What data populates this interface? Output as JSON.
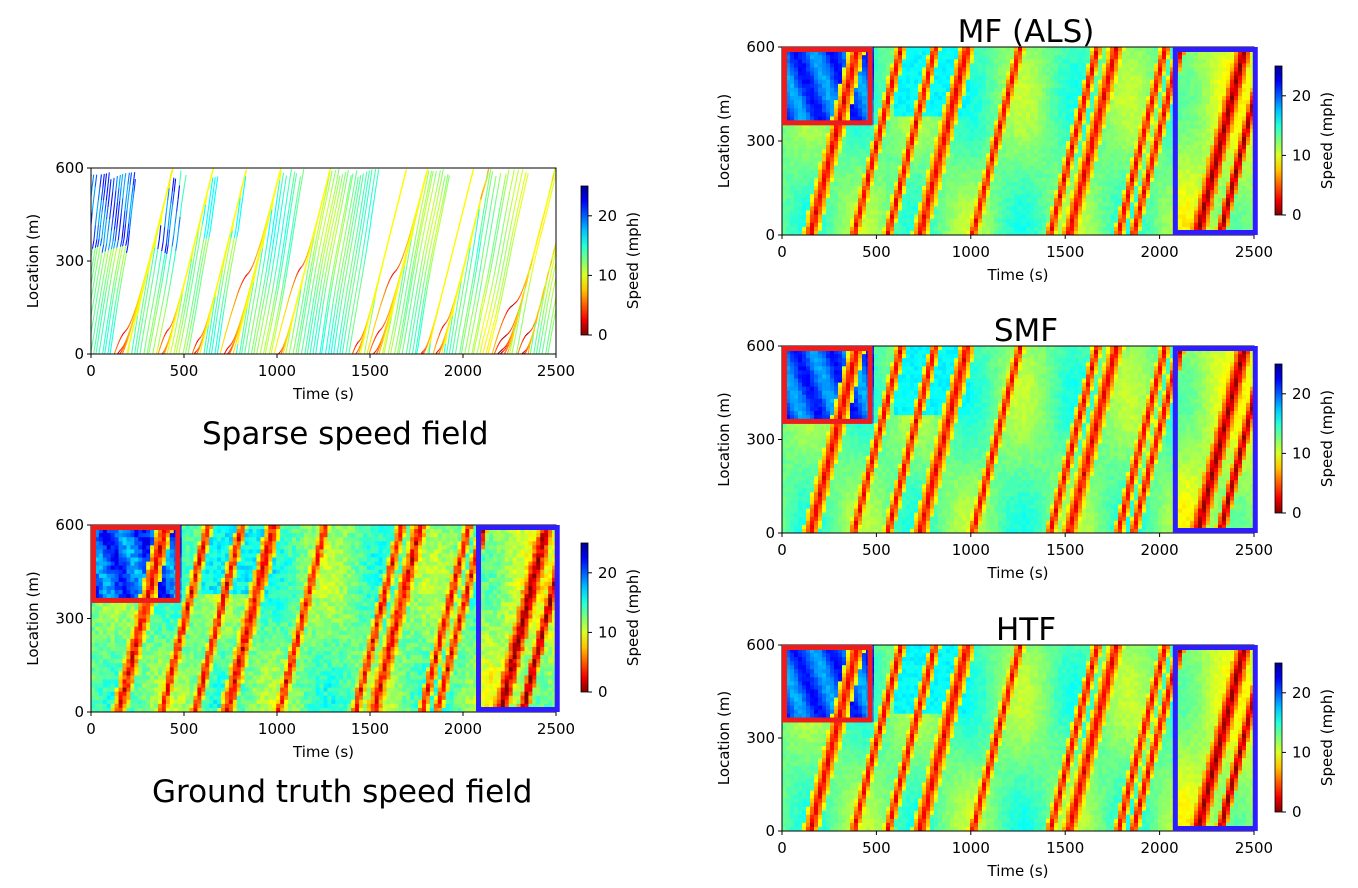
{
  "captions": {
    "sparse": "Sparse speed field",
    "ground_truth": "Ground truth speed field"
  },
  "highlight_colors": {
    "congestion_box": "#ee1c1c",
    "late_box": "#2f1cff"
  },
  "chart_data": [
    {
      "id": "sparse",
      "type": "heatmap",
      "title": "",
      "xlabel": "Time (s)",
      "ylabel": "Location (m)",
      "xlim": [
        0,
        2500
      ],
      "ylim": [
        0,
        600
      ],
      "xticks": [
        0,
        500,
        1000,
        1500,
        2000,
        2500
      ],
      "yticks": [
        0,
        300,
        600
      ],
      "colorbar": {
        "label": "Speed (mph)",
        "ticks": [
          0,
          10,
          20
        ],
        "range": [
          0,
          25
        ],
        "colormap": "jet_r"
      },
      "rendering": "sparse",
      "congestion_waves_start_time_s": [
        150,
        380,
        560,
        730,
        1010,
        1420,
        1520,
        1780,
        1860,
        2200,
        2320
      ],
      "highlight_boxes": []
    },
    {
      "id": "ground_truth",
      "type": "heatmap",
      "title": "",
      "xlabel": "Time (s)",
      "ylabel": "Location (m)",
      "xlim": [
        0,
        2500
      ],
      "ylim": [
        0,
        600
      ],
      "xticks": [
        0,
        500,
        1000,
        1500,
        2000,
        2500
      ],
      "yticks": [
        0,
        300,
        600
      ],
      "colorbar": {
        "label": "Speed (mph)",
        "ticks": [
          0,
          10,
          20
        ],
        "range": [
          0,
          25
        ],
        "colormap": "jet_r"
      },
      "rendering": "dense",
      "congestion_waves_start_time_s": [
        150,
        380,
        560,
        730,
        1010,
        1420,
        1520,
        1780,
        1860,
        2200,
        2320
      ],
      "highlight_boxes": [
        {
          "color": "red",
          "t": [
            0,
            480
          ],
          "loc": [
            350,
            600
          ]
        },
        {
          "color": "blue",
          "t": [
            2070,
            2520
          ],
          "loc": [
            0,
            600
          ]
        }
      ]
    },
    {
      "id": "mf_als",
      "type": "heatmap",
      "title": "MF (ALS)",
      "xlabel": "Time (s)",
      "ylabel": "Location (m)",
      "xlim": [
        0,
        2500
      ],
      "ylim": [
        0,
        600
      ],
      "xticks": [
        0,
        500,
        1000,
        1500,
        2000,
        2500
      ],
      "yticks": [
        0,
        300,
        600
      ],
      "colorbar": {
        "label": "Speed (mph)",
        "ticks": [
          0,
          10,
          20
        ],
        "range": [
          0,
          25
        ],
        "colormap": "jet_r"
      },
      "rendering": "smooth",
      "congestion_waves_start_time_s": [
        150,
        380,
        560,
        730,
        1010,
        1420,
        1520,
        1780,
        1860,
        2200,
        2320
      ],
      "highlight_boxes": [
        {
          "color": "red",
          "t": [
            0,
            480
          ],
          "loc": [
            350,
            600
          ]
        },
        {
          "color": "blue",
          "t": [
            2070,
            2520
          ],
          "loc": [
            0,
            600
          ]
        }
      ]
    },
    {
      "id": "smf",
      "type": "heatmap",
      "title": "SMF",
      "xlabel": "Time (s)",
      "ylabel": "Location (m)",
      "xlim": [
        0,
        2500
      ],
      "ylim": [
        0,
        600
      ],
      "xticks": [
        0,
        500,
        1000,
        1500,
        2000,
        2500
      ],
      "yticks": [
        0,
        300,
        600
      ],
      "colorbar": {
        "label": "Speed (mph)",
        "ticks": [
          0,
          10,
          20
        ],
        "range": [
          0,
          25
        ],
        "colormap": "jet_r"
      },
      "rendering": "smooth",
      "congestion_waves_start_time_s": [
        150,
        380,
        560,
        730,
        1010,
        1420,
        1520,
        1780,
        1860,
        2200,
        2320
      ],
      "highlight_boxes": [
        {
          "color": "red",
          "t": [
            0,
            480
          ],
          "loc": [
            350,
            600
          ]
        },
        {
          "color": "blue",
          "t": [
            2070,
            2520
          ],
          "loc": [
            0,
            600
          ]
        }
      ]
    },
    {
      "id": "htf",
      "type": "heatmap",
      "title": "HTF",
      "xlabel": "Time (s)",
      "ylabel": "Location (m)",
      "xlim": [
        0,
        2500
      ],
      "ylim": [
        0,
        600
      ],
      "xticks": [
        0,
        500,
        1000,
        1500,
        2000,
        2500
      ],
      "yticks": [
        0,
        300,
        600
      ],
      "colorbar": {
        "label": "Speed (mph)",
        "ticks": [
          0,
          10,
          20
        ],
        "range": [
          0,
          25
        ],
        "colormap": "jet_r"
      },
      "rendering": "smooth",
      "congestion_waves_start_time_s": [
        150,
        380,
        560,
        730,
        1010,
        1420,
        1520,
        1780,
        1860,
        2200,
        2320
      ],
      "highlight_boxes": [
        {
          "color": "red",
          "t": [
            0,
            480
          ],
          "loc": [
            350,
            600
          ]
        },
        {
          "color": "blue",
          "t": [
            2070,
            2520
          ],
          "loc": [
            0,
            600
          ]
        }
      ]
    }
  ]
}
